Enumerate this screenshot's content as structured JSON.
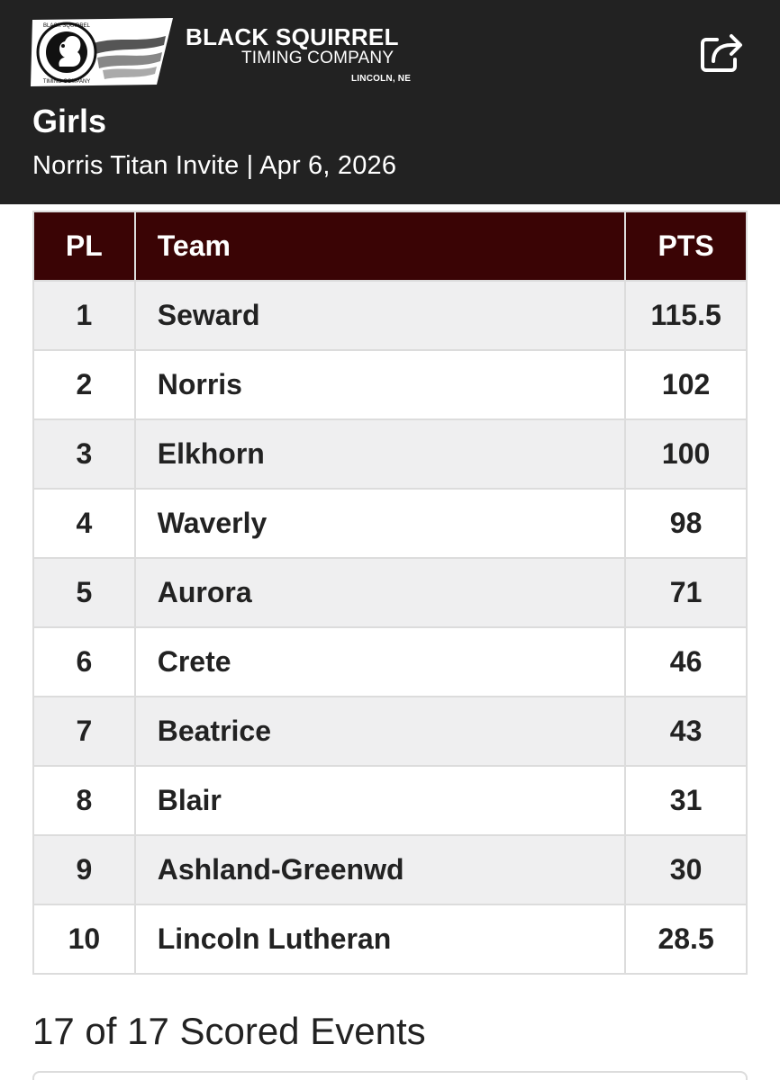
{
  "brand": {
    "line1": "BLACK SQUIRREL",
    "line2": "TIMING COMPANY",
    "line3": "LINCOLN, NE",
    "badge_top": "BLACK SQUIRREL",
    "badge_bottom": "TIMING COMPANY",
    "icon": "squirrel-logo"
  },
  "header": {
    "title": "Girls",
    "subtitle": "Norris Titan Invite | Apr 6, 2026",
    "share_icon": "share-icon",
    "background": "#222222"
  },
  "table": {
    "header_color": "#3a0405",
    "columns": {
      "place": "PL",
      "team": "Team",
      "points": "PTS"
    },
    "rows": [
      {
        "place": "1",
        "team": "Seward",
        "points": "115.5"
      },
      {
        "place": "2",
        "team": "Norris",
        "points": "102"
      },
      {
        "place": "3",
        "team": "Elkhorn",
        "points": "100"
      },
      {
        "place": "4",
        "team": "Waverly",
        "points": "98"
      },
      {
        "place": "5",
        "team": "Aurora",
        "points": "71"
      },
      {
        "place": "6",
        "team": "Crete",
        "points": "46"
      },
      {
        "place": "7",
        "team": "Beatrice",
        "points": "43"
      },
      {
        "place": "8",
        "team": "Blair",
        "points": "31"
      },
      {
        "place": "9",
        "team": "Ashland-Greenwd",
        "points": "30"
      },
      {
        "place": "10",
        "team": "Lincoln Lutheran",
        "points": "28.5"
      }
    ]
  },
  "events": {
    "heading": "17 of 17 Scored Events"
  }
}
